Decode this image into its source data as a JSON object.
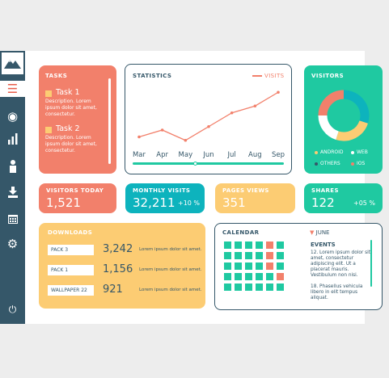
{
  "sidebar": {
    "icons": [
      {
        "name": "menu-icon",
        "glyph": "☰"
      },
      {
        "name": "eye-icon",
        "glyph": "◉"
      },
      {
        "name": "bar-chart-icon",
        "glyph": "▮"
      },
      {
        "name": "user-icon",
        "glyph": "♟"
      },
      {
        "name": "download-icon",
        "glyph": "⬇"
      },
      {
        "name": "calendar-icon",
        "glyph": "▦"
      },
      {
        "name": "gear-icon",
        "glyph": "⚙"
      },
      {
        "name": "power-icon",
        "glyph": "⏻"
      }
    ]
  },
  "tasks": {
    "title": "TASKS",
    "items": [
      {
        "title": "Task 1",
        "desc": "Description. Lorem ipsum dolor sit amet, consectetur."
      },
      {
        "title": "Task 2",
        "desc": "Description. Lorem ipsum dolor sit amet, consectetur."
      }
    ]
  },
  "statistics": {
    "title": "STATISTICS",
    "legend": "VISITS"
  },
  "chart_data": {
    "type": "line",
    "categories": [
      "Mar",
      "Apr",
      "May",
      "Jun",
      "Jul",
      "Aug",
      "Sep"
    ],
    "series": [
      {
        "name": "VISITS",
        "values": [
          1,
          2,
          0.5,
          2.5,
          4.5,
          5.5,
          7.5
        ]
      }
    ],
    "ylim": [
      0,
      8
    ],
    "legend_position": "top-right",
    "grid": false
  },
  "visitors": {
    "title": "VISITORS",
    "legend": [
      {
        "label": "ANDROID",
        "color": "#fccc73"
      },
      {
        "label": "WEB",
        "color": "#fff"
      },
      {
        "label": "OTHERS",
        "color": "#355769"
      },
      {
        "label": "IOS",
        "color": "#f2806b"
      }
    ],
    "donut": [
      {
        "label": "WEB",
        "value": 30,
        "color": "#0db3bd"
      },
      {
        "label": "ANDROID",
        "value": 25,
        "color": "#fccc73"
      },
      {
        "label": "OTHERS",
        "value": 20,
        "color": "#ffffff"
      },
      {
        "label": "IOS",
        "value": 25,
        "color": "#f2806b"
      }
    ]
  },
  "metrics": [
    {
      "title": "VISITORS TODAY",
      "value": "1,521",
      "pct": "",
      "color": "#f2806b"
    },
    {
      "title": "MONTHLY VISITS",
      "value": "32,211",
      "pct": "+10 %",
      "color": "#0db3bd"
    },
    {
      "title": "PAGES VIEWS",
      "value": "351",
      "pct": "",
      "color": "#fccc73"
    },
    {
      "title": "SHARES",
      "value": "122",
      "pct": "+05 %",
      "color": "#1fc9a1"
    }
  ],
  "downloads": {
    "title": "DOWNLOADS",
    "items": [
      {
        "name": "PACK  3",
        "count": "3,242",
        "text": "Lorem ipsum dolor sit amet."
      },
      {
        "name": "PACK  1",
        "count": "1,156",
        "text": "Lorem ipsum dolor sit amet."
      },
      {
        "name": "WALLPAPER 22",
        "count": "921",
        "text": "Lorem ipsum dolor sit amet."
      }
    ]
  },
  "calendar": {
    "title": "CALENDAR",
    "month": "JUNE",
    "events_title": "EVENTS",
    "events": [
      "12. Lorem ipsum dolor sit amet, consectetur adipiscing elit. Ut a placerat mauris. Vestibulum non nisi.",
      "18. Phasellus vehicula libero in elit tempus aliquat."
    ]
  }
}
